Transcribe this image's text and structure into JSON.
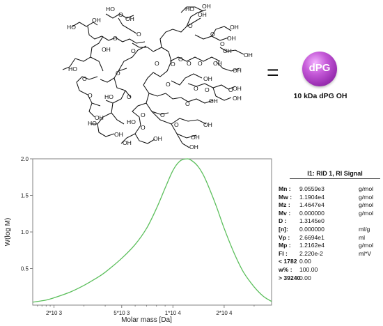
{
  "figure": {
    "equals": "=",
    "ball_label": "dPG",
    "caption": "10 kDa dPG OH",
    "colors": {
      "curve": "#5cbf5c",
      "ball": "#b547cc",
      "axis": "#808080"
    }
  },
  "chart_data": {
    "type": "line",
    "title": "",
    "xlabel": "Molar mass [Da]",
    "ylabel": "W(log M)",
    "x_scale": "log",
    "xlim": [
      1500,
      38000
    ],
    "ylim": [
      0.0,
      2.0
    ],
    "x_ticks": [
      {
        "value": 2000,
        "label": "2*10 3"
      },
      {
        "value": 5000,
        "label": "5*10 3"
      },
      {
        "value": 10000,
        "label": "1*10 4"
      },
      {
        "value": 20000,
        "label": "2*10 4"
      }
    ],
    "y_ticks": [
      {
        "value": 0.5,
        "label": "0.5"
      },
      {
        "value": 1.0,
        "label": "1.0"
      },
      {
        "value": 1.5,
        "label": "1.5"
      },
      {
        "value": 2.0,
        "label": "2.0"
      }
    ],
    "series": [
      {
        "x": [
          1500,
          1800,
          2000,
          2500,
          3000,
          3500,
          4000,
          5000,
          6000,
          7000,
          8000,
          9000,
          10000,
          11000,
          12162,
          13000,
          14000,
          15000,
          16000,
          18000,
          20000,
          23000,
          26000,
          30000,
          34000,
          38000
        ],
        "y": [
          0.04,
          0.07,
          0.1,
          0.18,
          0.27,
          0.36,
          0.45,
          0.64,
          0.83,
          1.05,
          1.32,
          1.6,
          1.84,
          1.97,
          2.0,
          1.97,
          1.9,
          1.79,
          1.65,
          1.35,
          1.05,
          0.7,
          0.45,
          0.25,
          0.12,
          0.05
        ]
      }
    ]
  },
  "results": {
    "title": "I1: RID 1, RI Signal",
    "rows": [
      {
        "key": "Mn :",
        "value": "9.0559e3",
        "unit": "g/mol"
      },
      {
        "key": "Mw :",
        "value": "1.1904e4",
        "unit": "g/mol"
      },
      {
        "key": "Mz :",
        "value": "1.4647e4",
        "unit": "g/mol"
      },
      {
        "key": "Mv :",
        "value": "0.000000",
        "unit": "g/mol"
      },
      {
        "key": "D :",
        "value": "1.3145e0",
        "unit": ""
      },
      {
        "key": "[n]:",
        "value": "0.000000",
        "unit": "ml/g"
      },
      {
        "key": "Vp :",
        "value": "2.6694e1",
        "unit": "ml"
      },
      {
        "key": "Mp :",
        "value": "1.2162e4",
        "unit": "g/mol"
      },
      {
        "key": "FI :",
        "value": "2.220e-2",
        "unit": "ml*V"
      },
      {
        "key": "< 1782",
        "value": "0.00",
        "unit": ""
      },
      {
        "key": "w% :",
        "value": "100.00",
        "unit": ""
      },
      {
        "key": "> 39240",
        "value": "0.00",
        "unit": ""
      }
    ]
  }
}
